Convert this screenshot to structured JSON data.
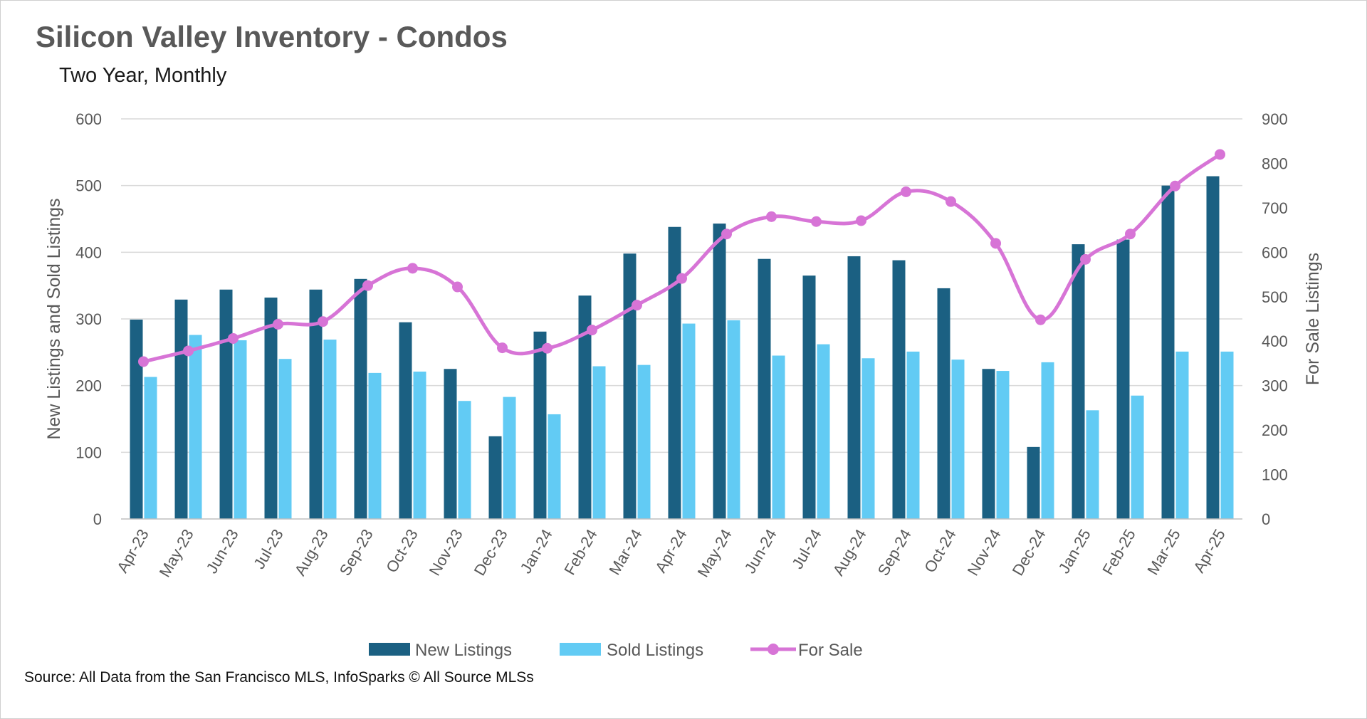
{
  "title": "Silicon Valley Inventory - Condos",
  "subtitle": "Two Year, Monthly",
  "source": "Source: All Data from the San Francisco MLS, InfoSparks © All Source MLSs",
  "colors": {
    "new_listings": "#1b6082",
    "sold_listings": "#62cbf4",
    "for_sale": "#d774d6",
    "grid": "#d9d9d9",
    "text": "#595959"
  },
  "chart_data": {
    "type": "bar",
    "categories": [
      "Apr-23",
      "May-23",
      "Jun-23",
      "Jul-23",
      "Aug-23",
      "Sep-23",
      "Oct-23",
      "Nov-23",
      "Dec-23",
      "Jan-24",
      "Feb-24",
      "Mar-24",
      "Apr-24",
      "May-24",
      "Jun-24",
      "Jul-24",
      "Aug-24",
      "Sep-24",
      "Oct-24",
      "Nov-24",
      "Dec-24",
      "Jan-25",
      "Feb-25",
      "Mar-25",
      "Apr-25"
    ],
    "series": [
      {
        "name": "New Listings",
        "type": "bar",
        "axis": "left",
        "values": [
          299,
          329,
          344,
          332,
          344,
          360,
          295,
          225,
          124,
          281,
          335,
          398,
          438,
          443,
          390,
          365,
          394,
          388,
          346,
          225,
          108,
          412,
          419,
          500,
          514
        ]
      },
      {
        "name": "Sold Listings",
        "type": "bar",
        "axis": "left",
        "values": [
          213,
          276,
          268,
          240,
          269,
          219,
          221,
          177,
          183,
          157,
          229,
          231,
          293,
          298,
          245,
          262,
          241,
          251,
          239,
          222,
          235,
          163,
          185,
          251,
          251
        ]
      },
      {
        "name": "For Sale",
        "type": "line",
        "axis": "right",
        "values": [
          354,
          378,
          406,
          438,
          444,
          525,
          564,
          522,
          385,
          384,
          425,
          481,
          541,
          641,
          680,
          669,
          671,
          736,
          714,
          620,
          448,
          584,
          641,
          749,
          820
        ]
      }
    ],
    "ylabel": "New Listings and Sold Listings",
    "y2label": "For Sale Listings",
    "ylim": [
      0,
      600
    ],
    "y2lim": [
      0,
      900
    ],
    "yticks": [
      0,
      100,
      200,
      300,
      400,
      500,
      600
    ],
    "y2ticks": [
      0,
      100,
      200,
      300,
      400,
      500,
      600,
      700,
      800,
      900
    ],
    "grid": true,
    "legend_position": "bottom"
  }
}
